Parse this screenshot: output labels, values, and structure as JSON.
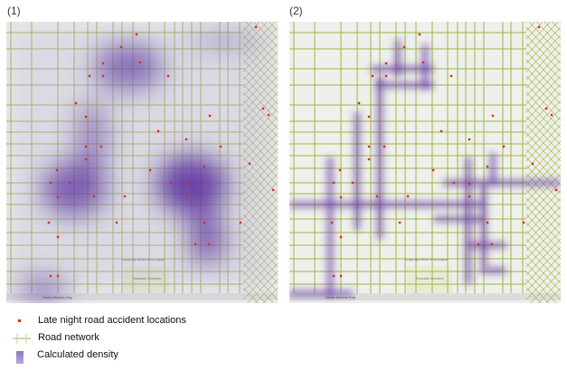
{
  "panels": [
    {
      "label": "(1)",
      "density_style": "kernel-area"
    },
    {
      "label": "(2)",
      "density_style": "network-based"
    }
  ],
  "map_labels": {
    "freeway": "Santa Monica Fwy",
    "cemetery": "Rosedale Cemetery",
    "school": "Loyola High School Of Los Angeles"
  },
  "legend": {
    "items": [
      {
        "label": "Late night road accident locations",
        "icon": "red-point",
        "color": "#d7301f"
      },
      {
        "label": "Road network",
        "icon": "road-line",
        "color": "#a4b24a"
      },
      {
        "label": "Calculated density",
        "icon": "density-swatch",
        "color": "#6a45a8"
      }
    ]
  },
  "colors": {
    "basemap": "#eef0eb",
    "road": "#a4b24a",
    "density": "#5b2ea0",
    "accident": "#d7301f"
  }
}
